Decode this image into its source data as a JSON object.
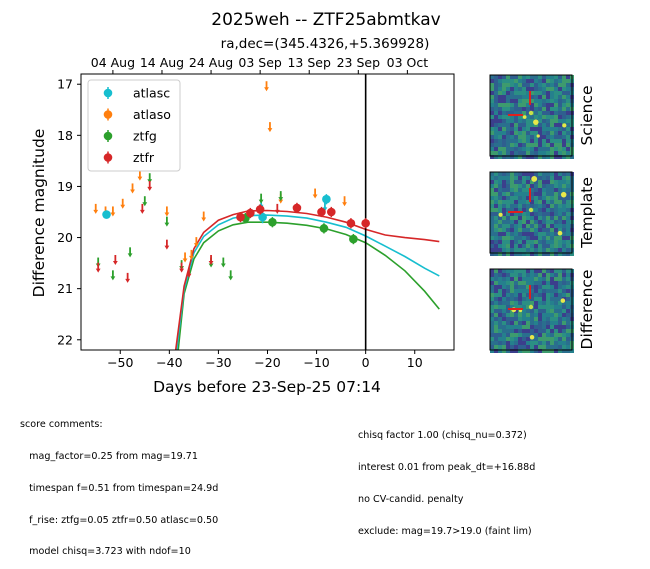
{
  "header": {
    "title": "2025weh -- ZTF25abmtkav",
    "radec": "ra,dec=(345.4326,+5.369928)"
  },
  "chart_data": {
    "type": "scatter",
    "xlabel": "Days before 23-Sep-25 07:14",
    "ylabel": "Difference magnitude",
    "xlim": [
      -58,
      18
    ],
    "ylim": [
      22.2,
      16.8
    ],
    "inverted_y": true,
    "xticks": [
      -50,
      -40,
      -30,
      -20,
      -10,
      0,
      10
    ],
    "yticks": [
      17,
      18,
      19,
      20,
      21,
      22
    ],
    "top_axis_ticks": [
      {
        "x": -51.5,
        "label": "04 Aug"
      },
      {
        "x": -41.5,
        "label": "14 Aug"
      },
      {
        "x": -31.5,
        "label": "24 Aug"
      },
      {
        "x": -21.5,
        "label": "03 Sep"
      },
      {
        "x": -11.5,
        "label": "13 Sep"
      },
      {
        "x": -1.5,
        "label": "23 Sep"
      },
      {
        "x": 8.5,
        "label": "03 Oct"
      }
    ],
    "reference_line_x": 0,
    "legend": {
      "position": "top-left"
    },
    "series": [
      {
        "name": "atlasc",
        "color": "#17becf",
        "points": [
          {
            "x": -52.8,
            "y": 19.55,
            "err": 0.08
          },
          {
            "x": -21.0,
            "y": 19.6,
            "err": 0.12
          },
          {
            "x": -8.0,
            "y": 19.25,
            "err": 0.1
          }
        ],
        "limits": [
          {
            "x": -21.3,
            "y": 19.3
          },
          {
            "x": -8.3,
            "y": 19.35
          }
        ]
      },
      {
        "name": "atlaso",
        "color": "#ff7f0e",
        "points": [],
        "limits": [
          {
            "x": -55.0,
            "y": 19.4
          },
          {
            "x": -53.0,
            "y": 19.45
          },
          {
            "x": -51.5,
            "y": 19.45
          },
          {
            "x": -49.5,
            "y": 19.3
          },
          {
            "x": -47.5,
            "y": 19.0
          },
          {
            "x": -46.0,
            "y": 18.75
          },
          {
            "x": -40.5,
            "y": 19.45
          },
          {
            "x": -36.8,
            "y": 20.35
          },
          {
            "x": -35.5,
            "y": 20.3
          },
          {
            "x": -34.5,
            "y": 20.05
          },
          {
            "x": -33.0,
            "y": 19.55
          },
          {
            "x": -20.2,
            "y": 17.0
          },
          {
            "x": -19.5,
            "y": 17.8
          },
          {
            "x": -17.3,
            "y": 19.2
          },
          {
            "x": -10.3,
            "y": 19.1
          },
          {
            "x": -4.3,
            "y": 19.25
          }
        ]
      },
      {
        "name": "ztfg",
        "color": "#2ca02c",
        "points": [
          {
            "x": -24.5,
            "y": 19.62,
            "err": 0.1
          },
          {
            "x": -19.0,
            "y": 19.7,
            "err": 0.1
          },
          {
            "x": -8.5,
            "y": 19.82,
            "err": 0.1
          },
          {
            "x": -2.5,
            "y": 20.03,
            "err": 0.1
          }
        ],
        "limits": [
          {
            "x": -54.5,
            "y": 20.45
          },
          {
            "x": -51.5,
            "y": 20.7
          },
          {
            "x": -48.0,
            "y": 20.25
          },
          {
            "x": -45.0,
            "y": 19.25
          },
          {
            "x": -44.0,
            "y": 18.8
          },
          {
            "x": -40.5,
            "y": 19.65
          },
          {
            "x": -37.5,
            "y": 20.5
          },
          {
            "x": -31.5,
            "y": 20.45
          },
          {
            "x": -29.0,
            "y": 20.45
          },
          {
            "x": -27.5,
            "y": 20.7
          },
          {
            "x": -21.3,
            "y": 19.2
          },
          {
            "x": -17.3,
            "y": 19.15
          }
        ]
      },
      {
        "name": "ztfr",
        "color": "#d62728",
        "points": [
          {
            "x": -25.5,
            "y": 19.6,
            "err": 0.1
          },
          {
            "x": -23.5,
            "y": 19.52,
            "err": 0.1
          },
          {
            "x": -21.5,
            "y": 19.45,
            "err": 0.1
          },
          {
            "x": -14.0,
            "y": 19.42,
            "err": 0.1
          },
          {
            "x": -9.0,
            "y": 19.5,
            "err": 0.1
          },
          {
            "x": -7.0,
            "y": 19.5,
            "err": 0.1
          },
          {
            "x": -3.0,
            "y": 19.72,
            "err": 0.1
          },
          {
            "x": 0.0,
            "y": 19.72,
            "err": 0.1
          }
        ],
        "limits": [
          {
            "x": -54.5,
            "y": 20.55
          },
          {
            "x": -51.0,
            "y": 20.4
          },
          {
            "x": -48.5,
            "y": 20.75
          },
          {
            "x": -45.5,
            "y": 19.4
          },
          {
            "x": -44.0,
            "y": 18.95
          },
          {
            "x": -40.5,
            "y": 20.1
          },
          {
            "x": -37.5,
            "y": 20.55
          },
          {
            "x": -36.0,
            "y": 20.65
          },
          {
            "x": -31.5,
            "y": 20.4
          },
          {
            "x": -18.0,
            "y": 19.4
          }
        ]
      }
    ],
    "model_curves": [
      {
        "name": "ztfg",
        "color": "#2ca02c",
        "points": [
          [
            -38.2,
            22.2
          ],
          [
            -37,
            21.1
          ],
          [
            -35,
            20.42
          ],
          [
            -33,
            20.1
          ],
          [
            -30,
            19.87
          ],
          [
            -27,
            19.75
          ],
          [
            -24,
            19.7
          ],
          [
            -20,
            19.7
          ],
          [
            -16,
            19.72
          ],
          [
            -12,
            19.76
          ],
          [
            -8,
            19.83
          ],
          [
            -4,
            19.94
          ],
          [
            0,
            20.1
          ],
          [
            4,
            20.35
          ],
          [
            8,
            20.65
          ],
          [
            12,
            21.05
          ],
          [
            15,
            21.4
          ]
        ]
      },
      {
        "name": "atlasc",
        "color": "#17becf",
        "points": [
          [
            -38.5,
            22.2
          ],
          [
            -37,
            21.02
          ],
          [
            -35,
            20.3
          ],
          [
            -33,
            19.98
          ],
          [
            -30,
            19.75
          ],
          [
            -27,
            19.62
          ],
          [
            -24,
            19.57
          ],
          [
            -20,
            19.56
          ],
          [
            -16,
            19.58
          ],
          [
            -12,
            19.62
          ],
          [
            -8,
            19.7
          ],
          [
            -4,
            19.8
          ],
          [
            0,
            19.97
          ],
          [
            4,
            20.17
          ],
          [
            8,
            20.37
          ],
          [
            12,
            20.6
          ],
          [
            15,
            20.75
          ]
        ]
      },
      {
        "name": "ztfr",
        "color": "#d62728",
        "points": [
          [
            -38.7,
            22.2
          ],
          [
            -37,
            20.95
          ],
          [
            -35,
            20.22
          ],
          [
            -33,
            19.9
          ],
          [
            -30,
            19.66
          ],
          [
            -27,
            19.55
          ],
          [
            -24,
            19.48
          ],
          [
            -20,
            19.47
          ],
          [
            -16,
            19.49
          ],
          [
            -12,
            19.53
          ],
          [
            -8,
            19.6
          ],
          [
            -4,
            19.7
          ],
          [
            0,
            19.84
          ],
          [
            4,
            19.95
          ],
          [
            8,
            20.0
          ],
          [
            12,
            20.04
          ],
          [
            15,
            20.08
          ]
        ]
      }
    ]
  },
  "cutouts": [
    {
      "label": "Science",
      "seed": 11
    },
    {
      "label": "Template",
      "seed": 29
    },
    {
      "label": "Difference",
      "seed": 53
    }
  ],
  "comments_left": [
    "score comments:",
    "   mag_factor=0.25 from mag=19.71",
    "   timespan f=0.51 from timespan=24.9d",
    "   f_rise: ztfg=0.05 ztfr=0.50 atlasc=0.50",
    "   model chisq=3.723 with ndof=10"
  ],
  "comments_right": [
    "chisq factor 1.00 (chisq_nu=0.372)",
    "interest 0.01 from peak_dt=+16.88d",
    "no CV-candid. penalty",
    "exclude: mag=19.7>19.0 (faint lim)"
  ]
}
